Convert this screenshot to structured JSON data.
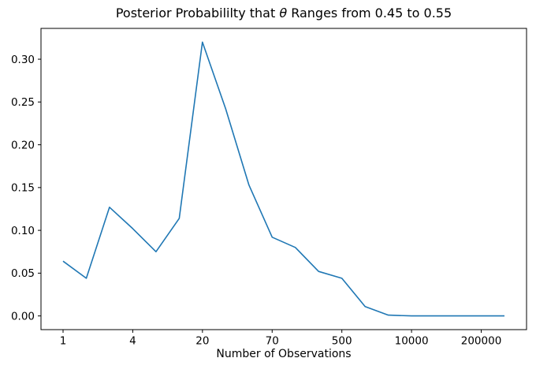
{
  "figure": {
    "title_parts": {
      "before": "Posterior Probabililty that ",
      "theta": "θ",
      "after": " Ranges from 0.45 to 0.55"
    }
  },
  "chart_data": {
    "type": "line",
    "title": "Posterior Probabililty that θ Ranges from 0.45 to 0.55",
    "xlabel": "Number of Observations",
    "ylabel": "",
    "grid": false,
    "legend": null,
    "background_color": "#ffffff",
    "spine_color": "#000000",
    "x_axis": {
      "scale": "equally spaced point indices (observation counts labeled at every 3rd point)",
      "tick_indices": [
        0,
        3,
        6,
        9,
        12,
        15,
        18
      ],
      "tick_labels": [
        "1",
        "4",
        "20",
        "70",
        "500",
        "10000",
        "200000"
      ],
      "lim": [
        -0.95,
        19.95
      ]
    },
    "y_axis": {
      "tick_values": [
        0.0,
        0.05,
        0.1,
        0.15,
        0.2,
        0.25,
        0.3
      ],
      "tick_labels": [
        "0.00",
        "0.05",
        "0.10",
        "0.15",
        "0.20",
        "0.25",
        "0.30"
      ],
      "lim": [
        -0.016,
        0.336
      ]
    },
    "series": [
      {
        "name": "posterior-probability",
        "color": "#1f77b4",
        "linewidth": 1.6,
        "x_index": [
          0,
          1,
          2,
          3,
          4,
          5,
          6,
          7,
          8,
          9,
          10,
          11,
          12,
          13,
          14,
          15,
          16,
          17,
          18,
          19
        ],
        "values": [
          0.064,
          0.044,
          0.127,
          0.102,
          0.075,
          0.114,
          0.32,
          0.242,
          0.153,
          0.092,
          0.08,
          0.052,
          0.044,
          0.011,
          0.001,
          0.0,
          0.0,
          0.0,
          0.0,
          0.0
        ]
      }
    ]
  }
}
